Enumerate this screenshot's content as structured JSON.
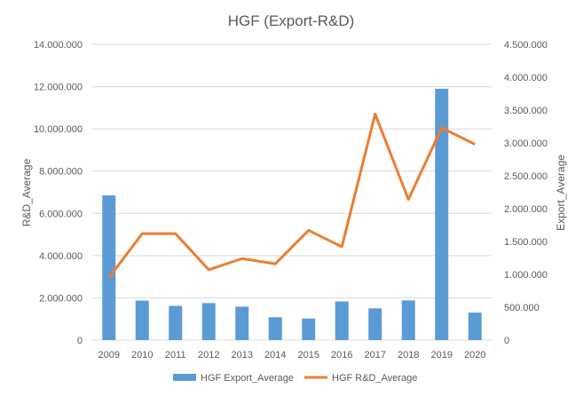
{
  "chart_data": {
    "type": "bar+line",
    "title": "HGF (Export-R&D)",
    "categories": [
      "2009",
      "2010",
      "2011",
      "2012",
      "2013",
      "2014",
      "2015",
      "2016",
      "2017",
      "2018",
      "2019",
      "2020"
    ],
    "y_left": {
      "label": "R&D_Average",
      "lim": [
        0,
        14000000
      ],
      "ticks": [
        "0",
        "2.000.000",
        "4.000.000",
        "6.000.000",
        "8.000.000",
        "10.000.000",
        "12.000.000",
        "14.000.000"
      ]
    },
    "y_right": {
      "label": "Export_Average",
      "lim": [
        0,
        4500000
      ],
      "ticks": [
        "0",
        "500.000",
        "1.000.000",
        "1.500.000",
        "2.000.000",
        "2.500.000",
        "3.000.000",
        "3.500.000",
        "4.000.000",
        "4.500.000"
      ]
    },
    "series": [
      {
        "name": "HGF Export_Average",
        "type": "bar",
        "axis": "left",
        "color": "#5B9BD5",
        "values": [
          6850000,
          1870000,
          1620000,
          1750000,
          1580000,
          1080000,
          1020000,
          1830000,
          1500000,
          1880000,
          11900000,
          1300000
        ]
      },
      {
        "name": "HGF R&D_Average",
        "type": "line",
        "axis": "right",
        "color": "#ED7D31",
        "values": [
          950000,
          1620000,
          1620000,
          1070000,
          1240000,
          1160000,
          1670000,
          1420000,
          3440000,
          2140000,
          3230000,
          2980000
        ]
      }
    ],
    "grid": true,
    "legend_position": "bottom"
  }
}
